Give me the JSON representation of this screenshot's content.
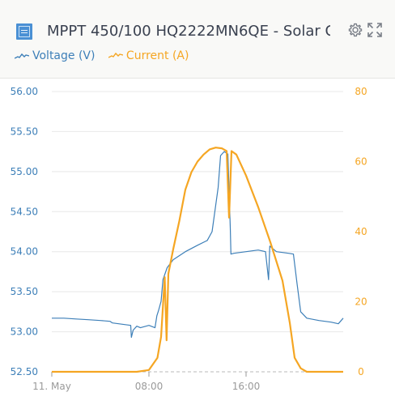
{
  "header": {
    "title": "MPPT 450/100 HQ2222MN6QE - Solar C...",
    "device_icon": "solar-charger-icon",
    "settings_icon": "gear-icon",
    "expand_icon": "expand-icon"
  },
  "colors": {
    "voltage": "#3d7fb8",
    "current": "#f5a623",
    "grid": "#e8e8e8",
    "axis": "#9a9a9a"
  },
  "chart_data": {
    "type": "line",
    "grid": true,
    "legend": "top-left",
    "x_range": [
      0,
      24
    ],
    "x_ticks": [
      {
        "x": 0,
        "label": "11. May"
      },
      {
        "x": 8,
        "label": "08:00"
      },
      {
        "x": 16,
        "label": "16:00"
      }
    ],
    "y_left": {
      "range": [
        52.5,
        56.0
      ],
      "ticks": [
        "56.00",
        "55.50",
        "55.00",
        "54.50",
        "54.00",
        "53.50",
        "53.00",
        "52.50"
      ]
    },
    "y_right": {
      "range": [
        0,
        80
      ],
      "ticks": [
        "80",
        "60",
        "40",
        "20",
        "0"
      ]
    },
    "series": [
      {
        "name": "Voltage (V)",
        "axis": "left",
        "points": [
          [
            0.0,
            53.17
          ],
          [
            1.0,
            53.17
          ],
          [
            2.0,
            53.16
          ],
          [
            3.0,
            53.15
          ],
          [
            4.0,
            53.14
          ],
          [
            4.8,
            53.13
          ],
          [
            5.0,
            53.11
          ],
          [
            6.0,
            53.09
          ],
          [
            6.5,
            53.08
          ],
          [
            6.55,
            52.93
          ],
          [
            6.7,
            53.02
          ],
          [
            7.0,
            53.07
          ],
          [
            7.3,
            53.05
          ],
          [
            8.0,
            53.08
          ],
          [
            8.5,
            53.05
          ],
          [
            8.65,
            53.2
          ],
          [
            8.8,
            53.27
          ],
          [
            9.0,
            53.38
          ],
          [
            9.15,
            53.65
          ],
          [
            9.5,
            53.8
          ],
          [
            10.0,
            53.9
          ],
          [
            11.0,
            54.0
          ],
          [
            12.0,
            54.08
          ],
          [
            12.8,
            54.14
          ],
          [
            13.2,
            54.25
          ],
          [
            13.7,
            54.8
          ],
          [
            13.9,
            55.2
          ],
          [
            14.2,
            55.25
          ],
          [
            14.5,
            55.22
          ],
          [
            14.7,
            54.3
          ],
          [
            14.75,
            53.97
          ],
          [
            15.0,
            53.98
          ],
          [
            16.0,
            54.0
          ],
          [
            17.0,
            54.02
          ],
          [
            17.6,
            54.0
          ],
          [
            17.85,
            53.65
          ],
          [
            17.95,
            54.07
          ],
          [
            18.5,
            54.0
          ],
          [
            19.5,
            53.98
          ],
          [
            19.9,
            53.97
          ],
          [
            20.2,
            53.6
          ],
          [
            20.5,
            53.25
          ],
          [
            21.0,
            53.17
          ],
          [
            22.0,
            53.14
          ],
          [
            23.0,
            53.12
          ],
          [
            23.6,
            53.1
          ],
          [
            24.0,
            53.17
          ]
        ]
      },
      {
        "name": "Current (A)",
        "axis": "right",
        "points": [
          [
            0.0,
            0
          ],
          [
            7.0,
            0
          ],
          [
            8.0,
            0.5
          ],
          [
            8.7,
            4
          ],
          [
            9.0,
            10
          ],
          [
            9.3,
            27
          ],
          [
            9.45,
            9
          ],
          [
            9.6,
            28
          ],
          [
            10.0,
            35
          ],
          [
            10.5,
            43
          ],
          [
            11.0,
            52
          ],
          [
            11.5,
            57
          ],
          [
            12.0,
            60
          ],
          [
            12.5,
            62
          ],
          [
            13.0,
            63.5
          ],
          [
            13.5,
            64
          ],
          [
            14.0,
            63.8
          ],
          [
            14.4,
            63
          ],
          [
            14.6,
            44
          ],
          [
            14.8,
            63
          ],
          [
            15.2,
            62
          ],
          [
            16.0,
            56
          ],
          [
            17.0,
            47
          ],
          [
            18.0,
            37
          ],
          [
            19.0,
            26
          ],
          [
            19.6,
            14
          ],
          [
            20.0,
            4
          ],
          [
            20.5,
            1
          ],
          [
            21.0,
            0
          ],
          [
            24.0,
            0
          ]
        ]
      }
    ]
  }
}
